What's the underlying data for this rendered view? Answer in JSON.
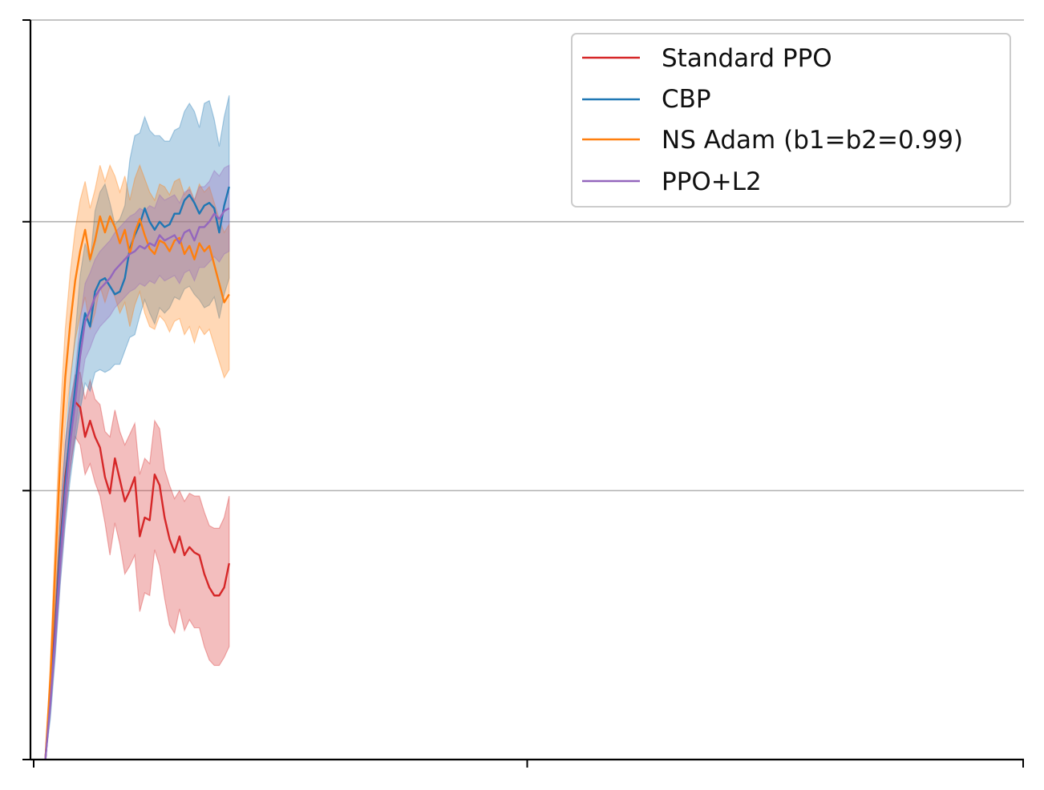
{
  "chart_data": {
    "type": "line",
    "title": "",
    "xlabel": "",
    "ylabel": "",
    "xlim": [
      0,
      100
    ],
    "ylim": [
      0,
      2.75
    ],
    "xticks": [
      0,
      50,
      100
    ],
    "yticks": [
      0,
      1,
      2,
      2.75
    ],
    "ygrid_lines": [
      1,
      2,
      2.75
    ],
    "grid": "horizontal",
    "legend_position": "top-right",
    "x": [
      1.5,
      2.0,
      2.5,
      3.0,
      3.5,
      4.0,
      4.5,
      5.0,
      5.5,
      6.0,
      6.5,
      7.0,
      7.5,
      8.0,
      8.5,
      9.0,
      9.5,
      10.0,
      10.5,
      11.0,
      11.5,
      12.0,
      12.5,
      13.0,
      13.5,
      14.0,
      14.5,
      15.0,
      15.5,
      16.0,
      16.5,
      17.0,
      17.5,
      18.0,
      18.5,
      19.0,
      19.5,
      20.0
    ],
    "series": [
      {
        "name": "Standard PPO",
        "color": "#d62728",
        "values": [
          0.0,
          0.25,
          0.5,
          0.8,
          1.05,
          1.2,
          1.33,
          1.31,
          1.2,
          1.26,
          1.2,
          1.16,
          1.05,
          0.99,
          1.12,
          1.04,
          0.96,
          1.0,
          1.05,
          0.83,
          0.9,
          0.89,
          1.06,
          1.02,
          0.9,
          0.82,
          0.77,
          0.83,
          0.76,
          0.79,
          0.77,
          0.76,
          0.69,
          0.64,
          0.61,
          0.61,
          0.64,
          0.73
        ],
        "band_low": [
          0.0,
          0.2,
          0.43,
          0.7,
          0.92,
          1.08,
          1.2,
          1.17,
          1.06,
          1.1,
          1.03,
          0.98,
          0.88,
          0.76,
          0.88,
          0.8,
          0.69,
          0.72,
          0.76,
          0.55,
          0.62,
          0.61,
          0.78,
          0.72,
          0.6,
          0.5,
          0.47,
          0.56,
          0.48,
          0.52,
          0.49,
          0.49,
          0.42,
          0.37,
          0.35,
          0.35,
          0.38,
          0.42
        ],
        "band_high": [
          0.0,
          0.3,
          0.57,
          0.9,
          1.18,
          1.33,
          1.43,
          1.44,
          1.34,
          1.41,
          1.34,
          1.32,
          1.22,
          1.2,
          1.3,
          1.22,
          1.17,
          1.21,
          1.25,
          1.06,
          1.12,
          1.1,
          1.26,
          1.23,
          1.08,
          1.02,
          0.97,
          1.0,
          0.96,
          0.99,
          0.98,
          0.98,
          0.92,
          0.87,
          0.86,
          0.86,
          0.9,
          0.98
        ]
      },
      {
        "name": "CBP",
        "color": "#1f77b4",
        "values": [
          0.0,
          0.22,
          0.48,
          0.78,
          1.02,
          1.22,
          1.38,
          1.55,
          1.66,
          1.61,
          1.74,
          1.78,
          1.79,
          1.76,
          1.73,
          1.74,
          1.79,
          1.9,
          1.95,
          1.99,
          2.05,
          2.0,
          1.97,
          2.0,
          1.98,
          1.99,
          2.03,
          2.03,
          2.08,
          2.1,
          2.07,
          2.03,
          2.06,
          2.07,
          2.05,
          1.96,
          2.06,
          2.13
        ],
        "band_low": [
          0.0,
          0.15,
          0.38,
          0.65,
          0.87,
          1.04,
          1.18,
          1.3,
          1.4,
          1.37,
          1.44,
          1.45,
          1.44,
          1.45,
          1.47,
          1.47,
          1.52,
          1.57,
          1.58,
          1.65,
          1.71,
          1.66,
          1.62,
          1.68,
          1.66,
          1.68,
          1.72,
          1.71,
          1.75,
          1.76,
          1.73,
          1.71,
          1.68,
          1.69,
          1.72,
          1.64,
          1.73,
          1.79
        ],
        "band_high": [
          0.0,
          0.29,
          0.58,
          0.91,
          1.17,
          1.4,
          1.58,
          1.8,
          1.92,
          1.85,
          2.04,
          2.11,
          2.14,
          2.07,
          1.99,
          2.01,
          2.06,
          2.23,
          2.32,
          2.33,
          2.39,
          2.34,
          2.32,
          2.32,
          2.3,
          2.3,
          2.34,
          2.35,
          2.41,
          2.44,
          2.41,
          2.35,
          2.44,
          2.45,
          2.38,
          2.28,
          2.39,
          2.47
        ]
      },
      {
        "name": "NS Adam (b1=b2=0.99)",
        "color": "#ff7f0e",
        "values": [
          0.0,
          0.3,
          0.72,
          1.12,
          1.42,
          1.62,
          1.78,
          1.89,
          1.97,
          1.86,
          1.93,
          2.02,
          1.96,
          2.02,
          1.98,
          1.92,
          1.97,
          1.88,
          1.96,
          2.01,
          1.95,
          1.9,
          1.88,
          1.93,
          1.92,
          1.89,
          1.93,
          1.94,
          1.88,
          1.91,
          1.86,
          1.92,
          1.89,
          1.91,
          1.84,
          1.77,
          1.7,
          1.73
        ],
        "band_low": [
          0.0,
          0.24,
          0.6,
          0.96,
          1.24,
          1.42,
          1.56,
          1.65,
          1.72,
          1.6,
          1.66,
          1.76,
          1.7,
          1.76,
          1.72,
          1.66,
          1.7,
          1.61,
          1.69,
          1.74,
          1.66,
          1.61,
          1.6,
          1.65,
          1.63,
          1.59,
          1.63,
          1.64,
          1.58,
          1.61,
          1.55,
          1.61,
          1.58,
          1.6,
          1.54,
          1.48,
          1.42,
          1.45
        ],
        "band_high": [
          0.0,
          0.36,
          0.84,
          1.28,
          1.6,
          1.81,
          1.97,
          2.08,
          2.15,
          2.05,
          2.12,
          2.21,
          2.15,
          2.21,
          2.17,
          2.11,
          2.17,
          2.08,
          2.16,
          2.21,
          2.16,
          2.11,
          2.08,
          2.14,
          2.13,
          2.1,
          2.15,
          2.16,
          2.1,
          2.13,
          2.08,
          2.14,
          2.11,
          2.13,
          2.07,
          2.01,
          1.96,
          1.99
        ]
      },
      {
        "name": "PPO+L2",
        "color": "#9467bd",
        "values": [
          0.0,
          0.21,
          0.46,
          0.74,
          0.98,
          1.18,
          1.33,
          1.5,
          1.63,
          1.67,
          1.72,
          1.75,
          1.77,
          1.79,
          1.82,
          1.84,
          1.86,
          1.88,
          1.89,
          1.91,
          1.9,
          1.92,
          1.91,
          1.95,
          1.93,
          1.94,
          1.95,
          1.92,
          1.96,
          1.97,
          1.93,
          1.98,
          1.98,
          2.0,
          2.03,
          2.01,
          2.04,
          2.05
        ],
        "band_low": [
          0.0,
          0.17,
          0.4,
          0.66,
          0.89,
          1.08,
          1.22,
          1.37,
          1.49,
          1.53,
          1.58,
          1.61,
          1.63,
          1.65,
          1.68,
          1.7,
          1.72,
          1.74,
          1.75,
          1.77,
          1.76,
          1.78,
          1.77,
          1.8,
          1.78,
          1.79,
          1.8,
          1.77,
          1.81,
          1.82,
          1.78,
          1.83,
          1.83,
          1.85,
          1.87,
          1.85,
          1.88,
          1.89
        ],
        "band_high": [
          0.0,
          0.25,
          0.52,
          0.82,
          1.07,
          1.28,
          1.44,
          1.63,
          1.77,
          1.81,
          1.86,
          1.89,
          1.91,
          1.93,
          1.96,
          1.98,
          2.0,
          2.02,
          2.03,
          2.05,
          2.04,
          2.06,
          2.05,
          2.1,
          2.08,
          2.09,
          2.1,
          2.07,
          2.11,
          2.12,
          2.08,
          2.13,
          2.13,
          2.15,
          2.19,
          2.17,
          2.2,
          2.21
        ]
      }
    ]
  }
}
